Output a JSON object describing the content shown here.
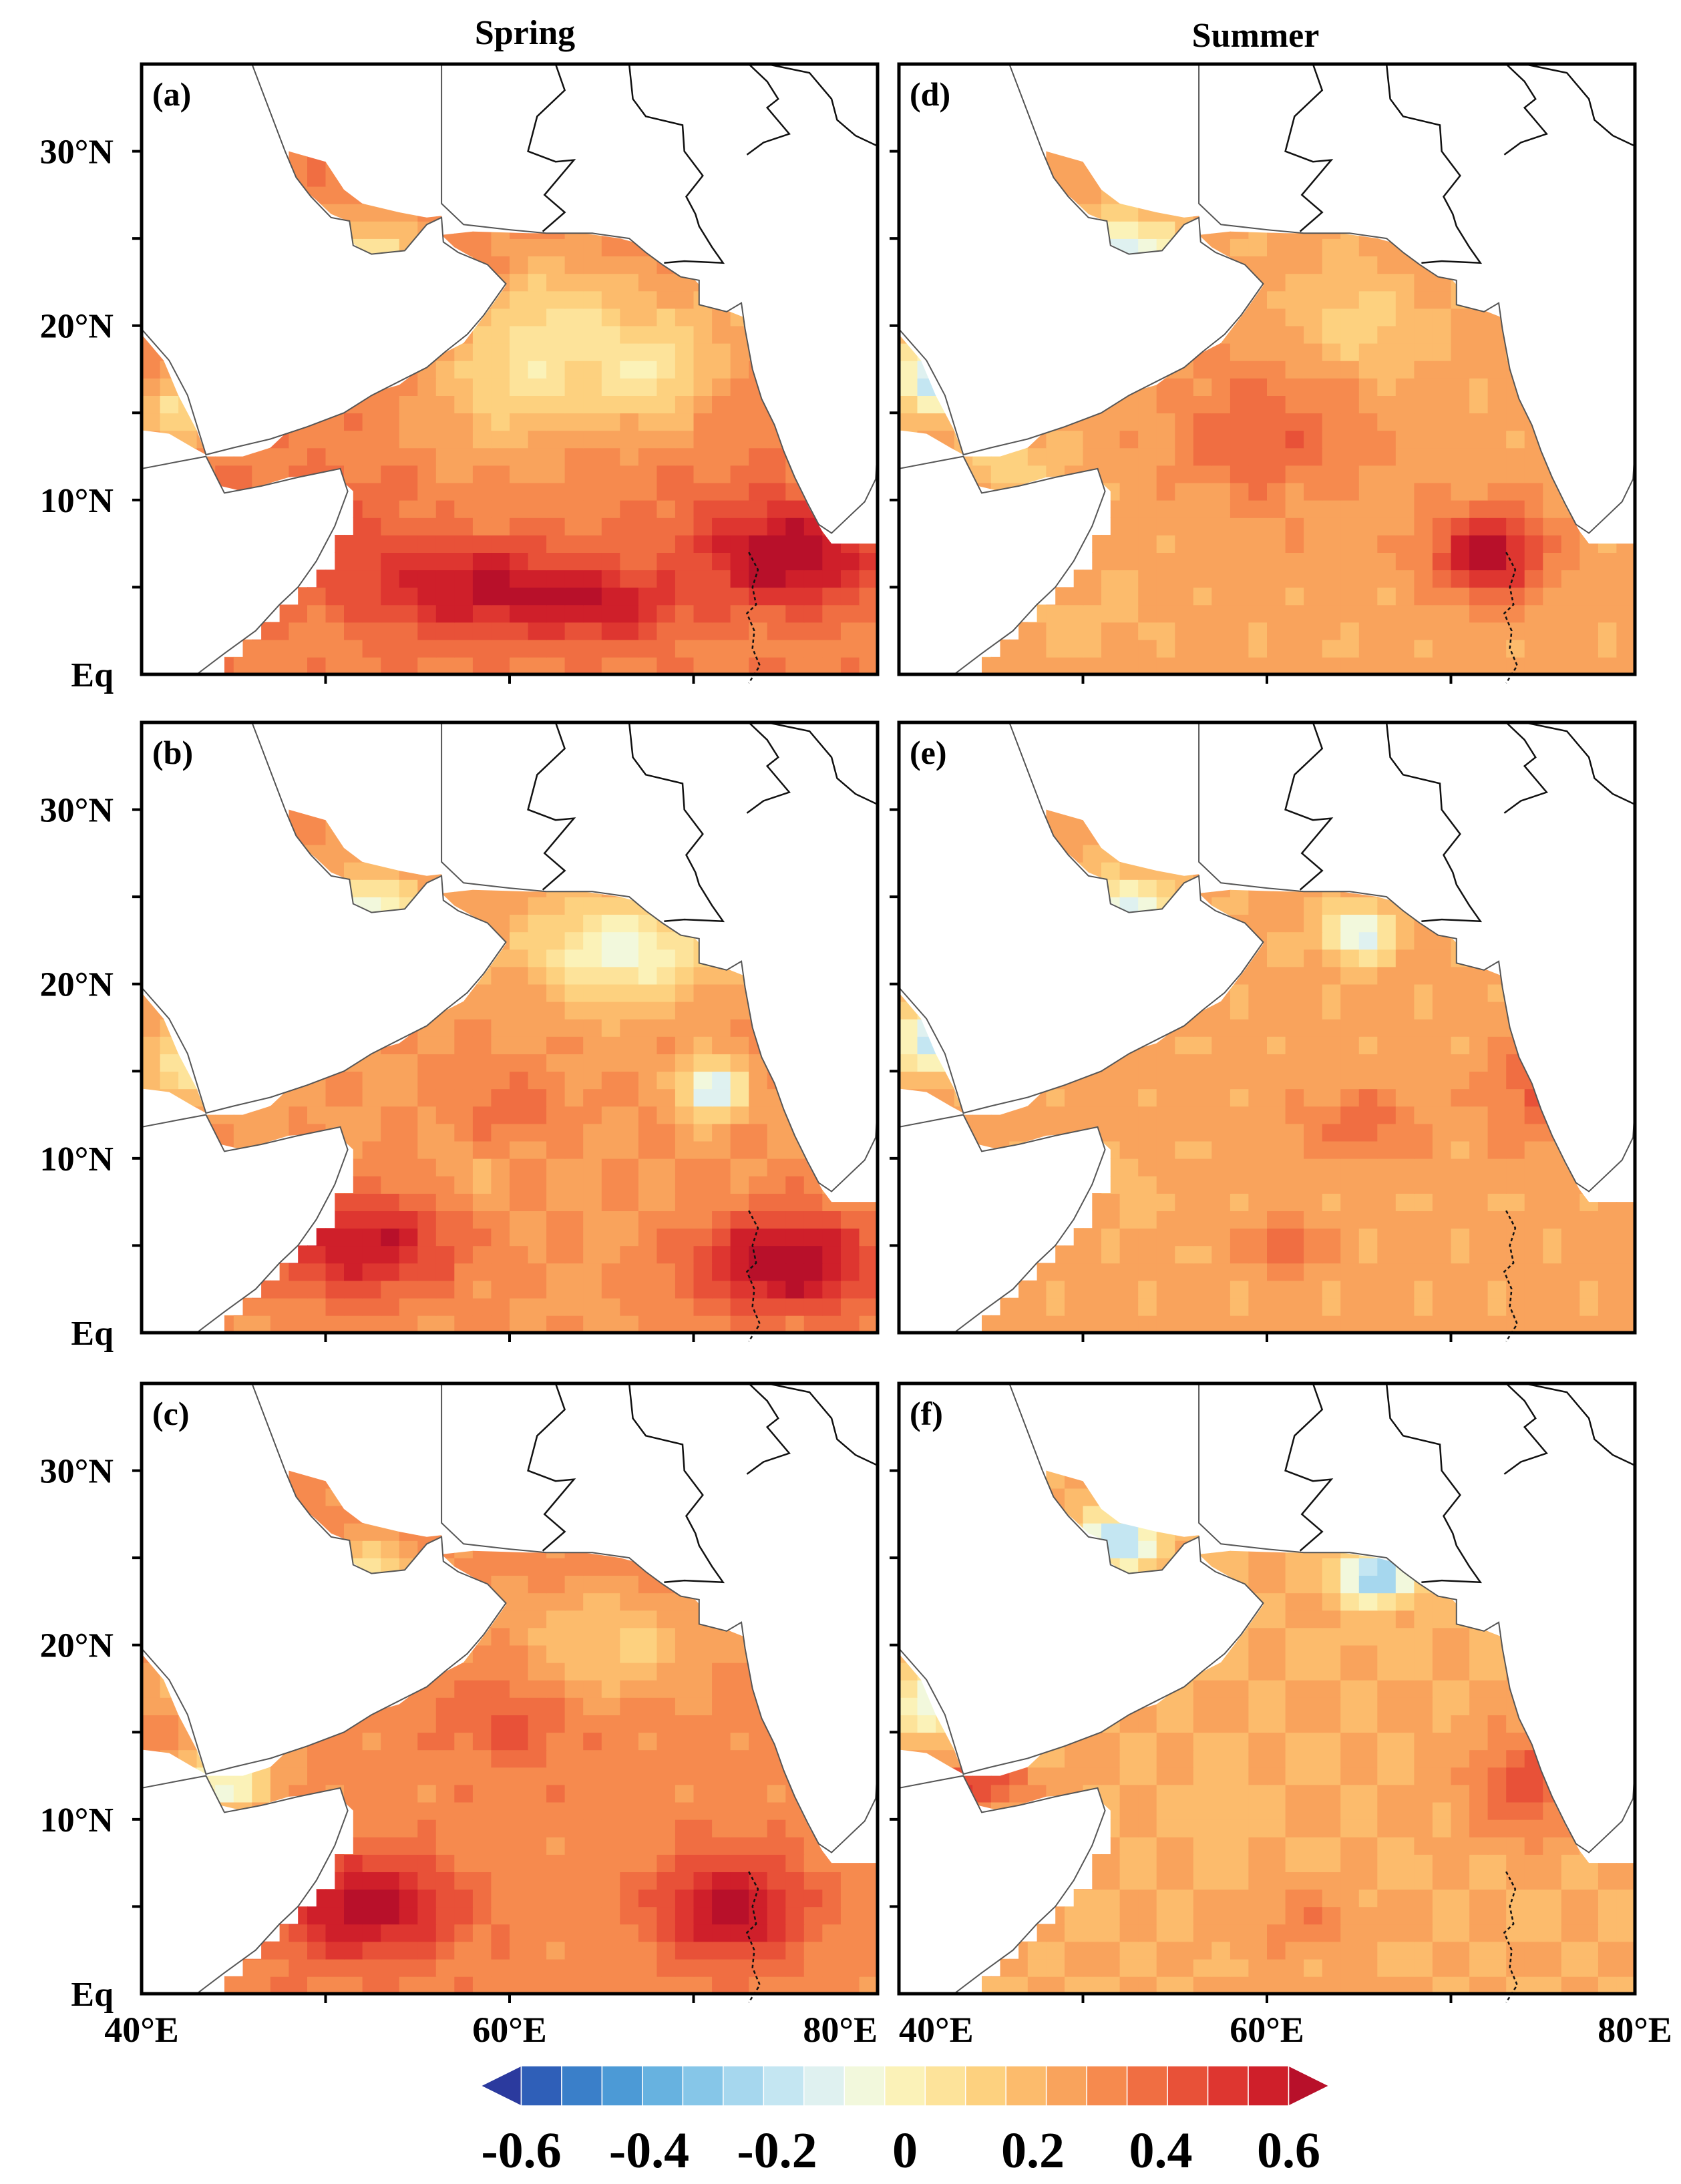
{
  "figure": {
    "columns": [
      {
        "title": "Spring",
        "panels": [
          "(a)",
          "(b)",
          "(c)"
        ]
      },
      {
        "title": "Summer",
        "panels": [
          "(d)",
          "(e)",
          "(f)"
        ]
      }
    ],
    "lat_labels": [
      "30°N",
      "20°N",
      "10°N",
      "Eq"
    ],
    "lon_labels_left": [
      "40°E",
      "60°E",
      "80°E"
    ],
    "lon_labels_right": [
      "40°E",
      "60°E",
      "80°E"
    ],
    "extent": {
      "lon": [
        40,
        80
      ],
      "lat": [
        0,
        35
      ]
    },
    "colorbar": {
      "tick_labels": [
        "-0.6",
        "-0.4",
        "-0.2",
        "0",
        "0.2",
        "0.4",
        "0.6"
      ],
      "range": [
        -0.6,
        0.6
      ],
      "colors": [
        "#2b3a9e",
        "#2f5fb8",
        "#3a7fc9",
        "#4c9ad6",
        "#67b2e0",
        "#86c6e8",
        "#a6d7ee",
        "#c4e6f2",
        "#dff1f0",
        "#f2f8dc",
        "#fbf2b8",
        "#fde39a",
        "#fdd17f",
        "#fcbb6c",
        "#f9a35c",
        "#f68a4e",
        "#f06e42",
        "#e85138",
        "#de3630",
        "#cf1f2a",
        "#b8102a"
      ]
    },
    "panels_data": {
      "a": {
        "base": 0.3,
        "blobs": [
          [
            5,
            58,
            0.25,
            2.5,
            6
          ],
          [
            7,
            75,
            0.3,
            3,
            5
          ],
          [
            4,
            65,
            0.2,
            2,
            4
          ],
          [
            8,
            50,
            0.1,
            3,
            4
          ],
          [
            16,
            60,
            -0.15,
            4,
            5
          ],
          [
            20,
            63,
            -0.2,
            4,
            5
          ],
          [
            17,
            68,
            -0.2,
            3,
            3
          ],
          [
            15,
            42,
            -0.25,
            2,
            2
          ],
          [
            24,
            52,
            -0.3,
            2,
            3
          ],
          [
            21,
            72,
            -0.1,
            3,
            3
          ]
        ]
      },
      "b": {
        "base": 0.25,
        "blobs": [
          [
            5,
            52,
            0.3,
            3,
            5
          ],
          [
            4,
            75,
            0.35,
            3,
            5
          ],
          [
            14,
            71,
            -0.45,
            1.5,
            1.5
          ],
          [
            22,
            66,
            -0.3,
            3,
            5
          ],
          [
            9,
            58,
            -0.05,
            2,
            2
          ],
          [
            15,
            42,
            -0.2,
            2,
            2
          ],
          [
            24,
            52,
            -0.35,
            2,
            3
          ],
          [
            13,
            60,
            0.1,
            2,
            3
          ]
        ]
      },
      "c": {
        "base": 0.28,
        "blobs": [
          [
            5,
            52,
            0.3,
            3,
            5
          ],
          [
            5,
            72,
            0.3,
            3,
            4
          ],
          [
            16,
            60,
            0.1,
            3,
            4
          ],
          [
            20,
            65,
            -0.15,
            3,
            5
          ],
          [
            18,
            45,
            -0.4,
            2,
            3
          ],
          [
            12,
            44,
            -0.35,
            1.5,
            3
          ],
          [
            24,
            52,
            -0.25,
            2,
            3
          ]
        ]
      },
      "d": {
        "base": 0.22,
        "blobs": [
          [
            7,
            72,
            0.35,
            2.5,
            3
          ],
          [
            14,
            60,
            0.15,
            4,
            5
          ],
          [
            3,
            50,
            -0.05,
            2,
            3
          ],
          [
            20,
            65,
            -0.1,
            3,
            4
          ],
          [
            17,
            42,
            -0.4,
            2,
            2
          ],
          [
            24,
            52,
            -0.4,
            2,
            3
          ],
          [
            12,
            46,
            -0.1,
            2,
            3
          ]
        ]
      },
      "e": {
        "base": 0.22,
        "blobs": [
          [
            5,
            61,
            0.15,
            1.5,
            2
          ],
          [
            12,
            65,
            0.12,
            2,
            3
          ],
          [
            14,
            75,
            0.15,
            3,
            3
          ],
          [
            23,
            65,
            -0.35,
            1.5,
            2
          ],
          [
            17,
            42,
            -0.4,
            2,
            2
          ],
          [
            24,
            52,
            -0.35,
            2,
            3
          ],
          [
            8,
            52,
            -0.05,
            2,
            2
          ]
        ]
      },
      "f": {
        "base": 0.2,
        "blobs": [
          [
            12,
            74,
            0.2,
            3,
            3
          ],
          [
            12,
            44,
            0.25,
            1.5,
            3
          ],
          [
            24,
            66,
            -0.5,
            1.5,
            2
          ],
          [
            26,
            52,
            -0.45,
            1.5,
            2
          ],
          [
            10,
            57,
            -0.05,
            2,
            2
          ],
          [
            17,
            42,
            -0.3,
            2,
            2
          ],
          [
            4,
            62,
            0.1,
            2,
            3
          ]
        ]
      }
    }
  }
}
